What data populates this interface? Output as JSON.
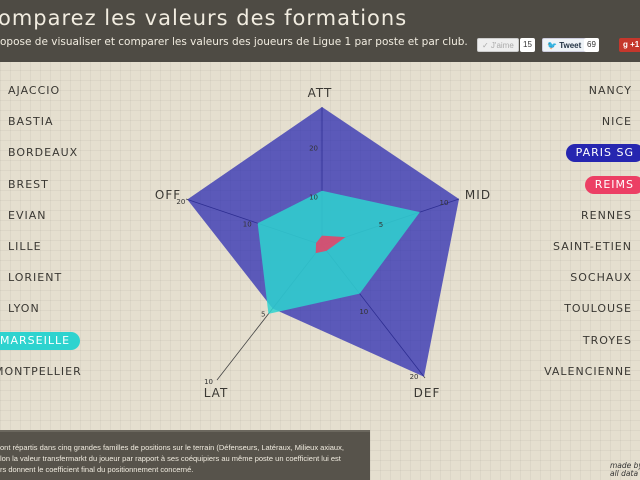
{
  "header": {
    "title": "omparez les valeurs des formations",
    "subtitle": "opose de visualiser et comparer les valeurs des joueurs de Ligue 1 par poste et par club.",
    "social": {
      "like_label": "✓ J'aime",
      "like_count": "15",
      "tweet_label": "Tweet",
      "tweet_count": "69",
      "gplus_label": "+1"
    }
  },
  "clubs_left": [
    "AJACCIO",
    "BASTIA",
    "BORDEAUX",
    "BREST",
    "EVIAN",
    "LILLE",
    "LORIENT",
    "LYON",
    "MARSEILLE",
    "MONTPELLIER"
  ],
  "clubs_right": [
    "NANCY",
    "NICE",
    "PARIS SG",
    "REIMS",
    "RENNES",
    "SAINT-ETIEN",
    "SOCHAUX",
    "TOULOUSE",
    "TROYES",
    "VALENCIENNE"
  ],
  "selected": {
    "MARSEILLE": "#2ed3cf",
    "PARIS SG": "#2626b0",
    "REIMS": "#ec3f64"
  },
  "chart_data": {
    "type": "radar",
    "axes": [
      {
        "label": "ATT",
        "range": [
          0,
          28
        ],
        "ticks": [
          10,
          20
        ]
      },
      {
        "label": "MID",
        "range": [
          0,
          10.5
        ],
        "ticks": [
          5,
          10
        ]
      },
      {
        "label": "DEF",
        "range": [
          0,
          20.5
        ],
        "ticks": [
          10,
          20
        ]
      },
      {
        "label": "LAT",
        "range": [
          0,
          10
        ],
        "ticks": [
          5,
          10
        ]
      },
      {
        "label": "OFF",
        "range": [
          0,
          20.5
        ],
        "ticks": [
          10,
          20
        ]
      }
    ],
    "series": [
      {
        "name": "PARIS SG",
        "color": "#2626b0",
        "values": [
          28,
          10.5,
          20.3,
          4.7,
          20.3
        ]
      },
      {
        "name": "MARSEILLE",
        "color": "#2ed3cf",
        "values": [
          11,
          7.5,
          7.5,
          5.1,
          9.7
        ]
      },
      {
        "name": "REIMS",
        "color": "#ec3f64",
        "values": [
          1.9,
          1.8,
          0.9,
          0.6,
          0.9
        ]
      }
    ]
  },
  "footer": {
    "lines": [
      "ont répartis dans cinq grandes familles de positions sur le terrain (Défenseurs, Latéraux, Milieux axiaux,",
      "lon la valeur transfermarkt du joueur par rapport à ses coéquipiers au même poste un coefficient lui est",
      "rs donnent le coefficient final du positionnement concerné."
    ],
    "credit": [
      "made by",
      "all data"
    ]
  }
}
